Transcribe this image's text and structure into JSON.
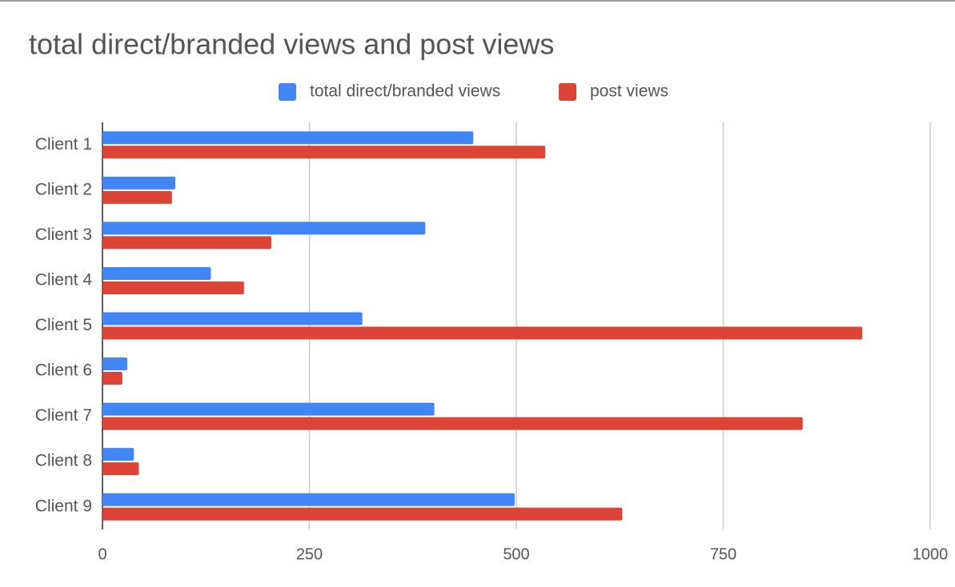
{
  "chart_data": {
    "type": "hbar",
    "title": "total direct/branded views and post views",
    "categories": [
      "Client 1",
      "Client 2",
      "Client 3",
      "Client 4",
      "Client 5",
      "Client 6",
      "Client 7",
      "Client 8",
      "Client 9"
    ],
    "series": [
      {
        "name": "total direct/branded views",
        "color": "#4285f4",
        "values": [
          448,
          88,
          390,
          131,
          314,
          30,
          401,
          38,
          498
        ]
      },
      {
        "name": "post views",
        "color": "#db4437",
        "values": [
          535,
          84,
          204,
          171,
          918,
          24,
          846,
          44,
          628
        ]
      }
    ],
    "xlim": [
      0,
      1000
    ],
    "xticks": [
      0,
      250,
      500,
      750,
      1000
    ],
    "grid": true,
    "legend": "top"
  }
}
